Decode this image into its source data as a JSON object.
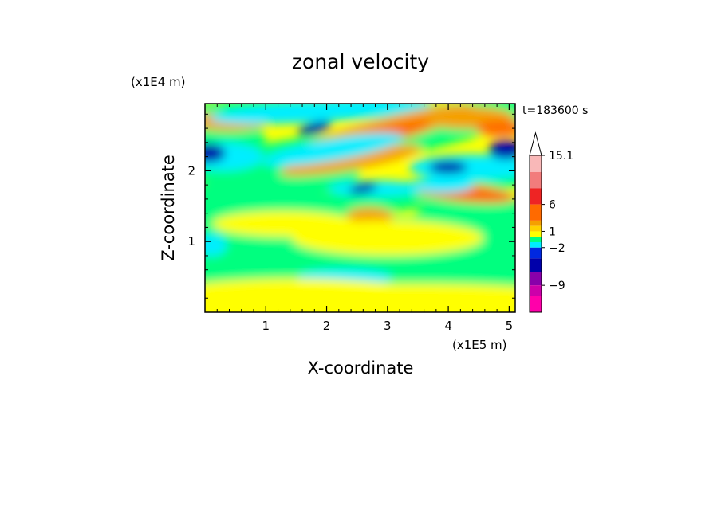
{
  "chart_data": {
    "type": "heatmap",
    "title": "zonal velocity",
    "xlabel": "X-coordinate",
    "ylabel": "Z-coordinate",
    "x_unit": "(x1E5 m)",
    "y_unit": "(x1E4 m)",
    "time_label": "t=183600 s",
    "xlim": [
      0,
      5.1
    ],
    "ylim": [
      0,
      2.95
    ],
    "x_ticks": [
      1,
      2,
      3,
      4,
      5
    ],
    "y_ticks": [
      1,
      2
    ],
    "x_tick_labels": [
      "1",
      "2",
      "3",
      "4",
      "5"
    ],
    "y_tick_labels": [
      "1",
      "2"
    ],
    "colorbar": {
      "extend_max": true,
      "label_values": [
        15.1,
        6,
        1,
        -2,
        -9
      ],
      "label_texts": [
        "15.1",
        "6",
        "1",
        "−2",
        "−9"
      ],
      "bins": [
        {
          "lo": 12.0,
          "hi": 15.1,
          "color": "#f9b8b8"
        },
        {
          "lo": 9.0,
          "hi": 12.0,
          "color": "#f27c7c"
        },
        {
          "lo": 6.0,
          "hi": 9.0,
          "color": "#ee2424"
        },
        {
          "lo": 3.0,
          "hi": 6.0,
          "color": "#ff6a00"
        },
        {
          "lo": 2.0,
          "hi": 3.0,
          "color": "#f5a000"
        },
        {
          "lo": 1.0,
          "hi": 2.0,
          "color": "#ffd200"
        },
        {
          "lo": 0.0,
          "hi": 1.0,
          "color": "#ffff00"
        },
        {
          "lo": -1.0,
          "hi": 0.0,
          "color": "#00ff7f"
        },
        {
          "lo": -2.0,
          "hi": -1.0,
          "color": "#00eeff"
        },
        {
          "lo": -4.0,
          "hi": -2.0,
          "color": "#0028e0"
        },
        {
          "lo": -6.5,
          "hi": -4.0,
          "color": "#0000aa"
        },
        {
          "lo": -9.0,
          "hi": -6.5,
          "color": "#8800aa"
        },
        {
          "lo": -11.0,
          "hi": -9.0,
          "color": "#cc00aa"
        },
        {
          "lo": -14.0,
          "hi": -11.0,
          "color": "#ff00aa"
        }
      ],
      "extend_color": "#ffffff"
    }
  }
}
